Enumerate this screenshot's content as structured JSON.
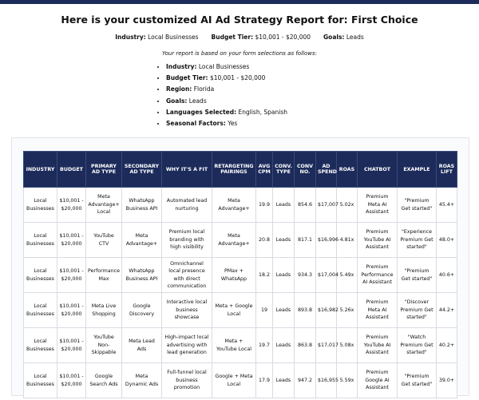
{
  "header": {
    "title": "Here is your customized AI Ad Strategy Report for: First Choice",
    "summary": [
      {
        "label": "Industry:",
        "value": "Local Businesses"
      },
      {
        "label": "Budget Tier:",
        "value": "$10,001 - $20,000"
      },
      {
        "label": "Goals:",
        "value": "Leads"
      }
    ],
    "note": "Your report is based on your form selections as follows:",
    "selections": [
      {
        "label": "Industry:",
        "value": "Local Businesses"
      },
      {
        "label": "Budget Tier:",
        "value": "$10,001 - $20,000"
      },
      {
        "label": "Region:",
        "value": "Florida"
      },
      {
        "label": "Goals:",
        "value": "Leads"
      },
      {
        "label": "Languages Selected:",
        "value": "English, Spanish"
      },
      {
        "label": "Seasonal Factors:",
        "value": "Yes"
      }
    ]
  },
  "table": {
    "columns": [
      "INDUSTRY",
      "BUDGET",
      "PRIMARY AD TYPE",
      "SECONDARY AD TYPE",
      "WHY IT'S A FIT",
      "RETARGETING PAIRINGS",
      "AVG CPM",
      "CONV. TYPE",
      "CONV NO.",
      "AD SPEND",
      "ROAS",
      "CHATBOT",
      "EXAMPLE",
      "ROAS LIFT"
    ],
    "rows": [
      [
        "Local Businesses",
        "$10,001 - $20,000",
        "Meta Advantage+ Local",
        "WhatsApp Business API",
        "Automated lead nurturing",
        "Meta Advantage+",
        "19.9",
        "Leads",
        "854.6",
        "$17,007",
        "5.02x",
        "Premium Meta AI Assistant",
        "\"Premium Get started\"",
        "45.4+"
      ],
      [
        "Local Businesses",
        "$10,001 - $20,000",
        "YouTube CTV",
        "Meta Advantage+",
        "Premium local branding with high visibility",
        "Meta Advantage+",
        "20.8",
        "Leads",
        "817.1",
        "$16,996",
        "4.81x",
        "Premium YouTube AI Assistant",
        "\"Experience Premium Get started\"",
        "48.0+"
      ],
      [
        "Local Businesses",
        "$10,001 - $20,000",
        "Performance Max",
        "WhatsApp Business API",
        "Omnichannel local presence with direct communication",
        "PMax + WhatsApp",
        "18.2",
        "Leads",
        "934.3",
        "$17,004",
        "5.49x",
        "Premium Performance AI Assistant",
        "\"Premium Get started\"",
        "40.6+"
      ],
      [
        "Local Businesses",
        "$10,001 - $20,000",
        "Meta Live Shopping",
        "Google Discovery",
        "Interactive local business showcase",
        "Meta + Google Local",
        "19",
        "Leads",
        "893.8",
        "$16,982",
        "5.26x",
        "Premium Meta AI Assistant",
        "\"Discover Premium Get started\"",
        "44.2+"
      ],
      [
        "Local Businesses",
        "$10,001 - $20,000",
        "YouTube Non-Skippable",
        "Meta Lead Ads",
        "High-impact local advertising with lead generation",
        "Meta + YouTube Local",
        "19.7",
        "Leads",
        "863.8",
        "$17,017",
        "5.08x",
        "Premium YouTube AI Assistant",
        "\"Watch Premium Get started\"",
        "40.2+"
      ],
      [
        "Local Businesses",
        "$10,001 - $20,000",
        "Google Search Ads",
        "Meta Dynamic Ads",
        "Full-funnel local business promotion",
        "Google + Meta Local",
        "17.9",
        "Leads",
        "947.2",
        "$16,955",
        "5.59x",
        "Premium Google AI Assistant",
        "\"Premium Get started\"",
        "39.0+"
      ]
    ]
  }
}
